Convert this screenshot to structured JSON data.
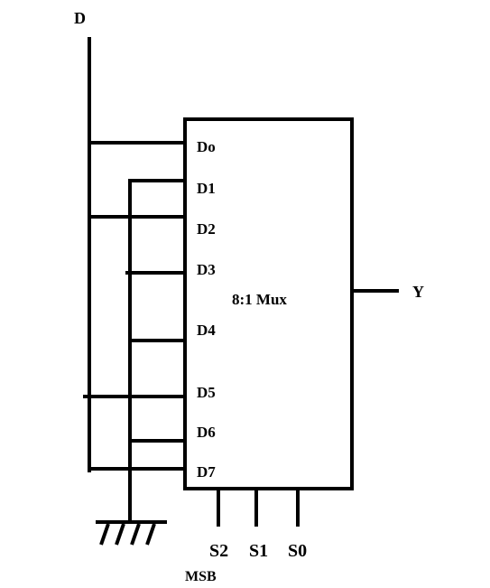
{
  "diagram": {
    "input_label": "D",
    "output_label": "Y",
    "mux_label": "8:1 Mux",
    "data_inputs": [
      "Do",
      "D1",
      "D2",
      "D3",
      "D4",
      "D5",
      "D6",
      "D7"
    ],
    "select_labels": [
      "S2",
      "S1",
      "S0"
    ],
    "msb_label": "MSB",
    "line_color": "#000000"
  }
}
